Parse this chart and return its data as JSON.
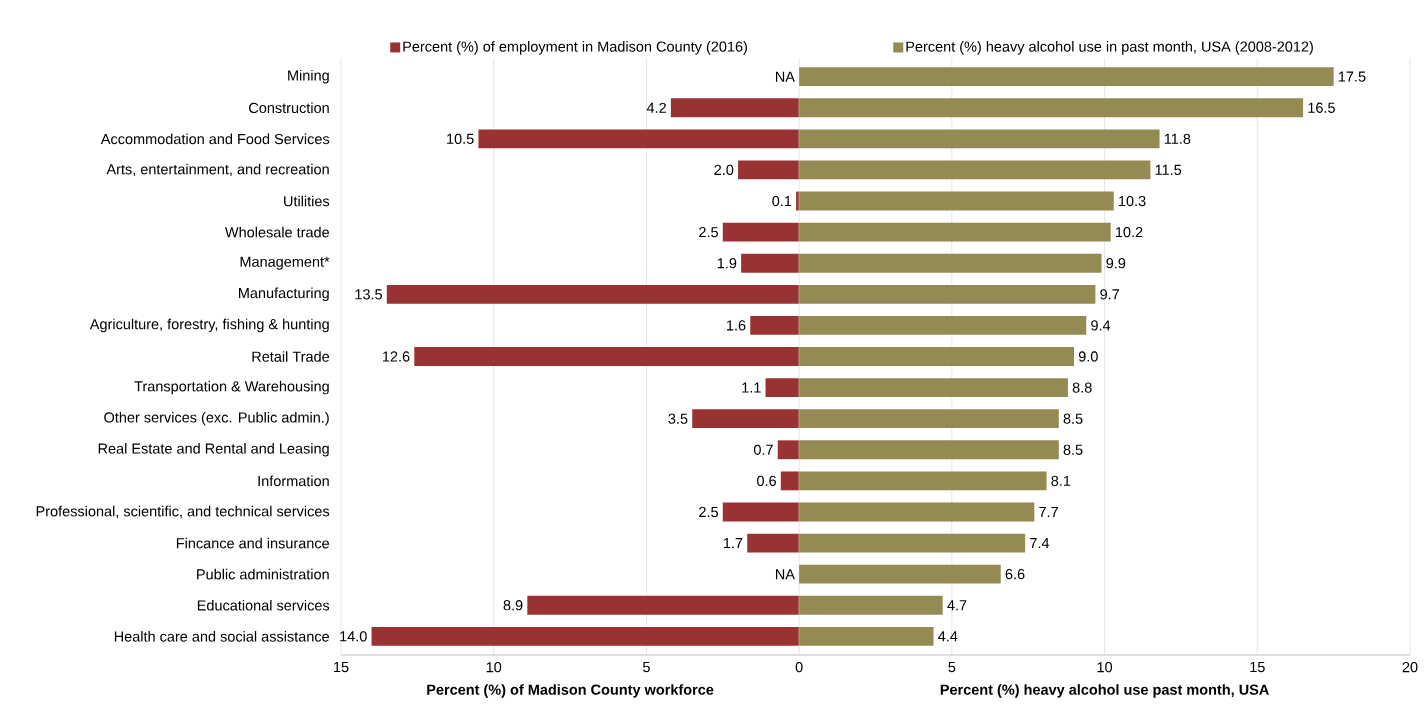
{
  "chart_data": [
    {
      "type": "bar",
      "orientation": "horizontal",
      "categories": [
        "Mining",
        "Construction",
        "Accommodation and Food Services",
        "Arts, entertainment, and recreation",
        "Utilities",
        "Wholesale trade",
        "Management*",
        "Manufacturing",
        "Agriculture, forestry, fishing & hunting",
        "Retail Trade",
        "Transportation & Warehousing",
        "Other services (exc. Public admin.)",
        "Real Estate and Rental and Leasing",
        "Information",
        "Professional, scientific, and technical services",
        "Fincance and insurance",
        "Public administration",
        "Educational services",
        "Health care and social assistance"
      ],
      "series": [
        {
          "name": "Percent (%) of employment in Madison County (2016)",
          "color": "#993333",
          "values": [
            null,
            4.2,
            10.5,
            2.0,
            0.1,
            2.5,
            1.9,
            13.5,
            1.6,
            12.6,
            1.1,
            3.5,
            0.7,
            0.6,
            2.5,
            1.7,
            null,
            8.9,
            14.0
          ],
          "value_labels": [
            "NA",
            "4.2",
            "10.5",
            "2.0",
            "0.1",
            "2.5",
            "1.9",
            "13.5",
            "1.6",
            "12.6",
            "1.1",
            "3.5",
            "0.7",
            "0.6",
            "2.5",
            "1.7",
            "NA",
            "8.9",
            "14.0"
          ]
        }
      ],
      "xlim": [
        15,
        0
      ],
      "xticks": [
        15,
        10,
        5
      ],
      "xlabel": "Percent (%) of Madison County workforce",
      "grid": "x",
      "legend": "top"
    },
    {
      "type": "bar",
      "orientation": "horizontal",
      "categories": [
        null,
        null,
        null,
        null,
        null,
        null,
        null,
        null,
        null,
        null,
        null,
        null,
        null,
        null,
        null,
        null,
        null,
        null,
        null
      ],
      "series": [
        {
          "name": "Percent (%) heavy alcohol use in past month, USA (2008-2012)",
          "color": "#948a54",
          "values": [
            17.5,
            16.5,
            11.8,
            11.5,
            10.3,
            10.2,
            9.9,
            9.7,
            9.4,
            9.0,
            8.8,
            8.5,
            8.5,
            8.1,
            7.7,
            7.4,
            6.6,
            4.7,
            4.4
          ],
          "value_labels": [
            "17.5",
            "16.5",
            "11.8",
            "11.5",
            "10.3",
            "10.2",
            "9.9",
            "9.7",
            "9.4",
            "9.0",
            "8.8",
            "8.5",
            "8.5",
            "8.1",
            "7.7",
            "7.4",
            "6.6",
            "4.7",
            "4.4"
          ]
        }
      ],
      "xlim": [
        0,
        20
      ],
      "xticks": [
        0,
        5,
        10,
        15,
        20
      ],
      "xlabel": "Percent (%) heavy alcohol use past month, USA",
      "grid": "x",
      "legend": "top",
      "tick_labels": "x"
    }
  ]
}
